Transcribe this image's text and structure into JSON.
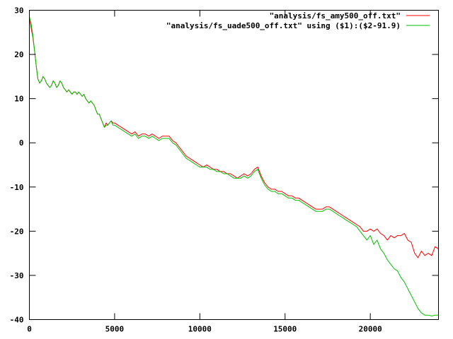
{
  "chart_data": {
    "type": "line",
    "title": "",
    "xlabel": "",
    "ylabel": "",
    "xlim": [
      0,
      24000
    ],
    "ylim": [
      -40,
      30
    ],
    "x_ticks": [
      0,
      5000,
      10000,
      15000,
      20000
    ],
    "x_tick_labels": [
      "0",
      "5000",
      "10000",
      "15000",
      "20000"
    ],
    "y_ticks": [
      30,
      20,
      10,
      0,
      -10,
      -20,
      -30,
      -40
    ],
    "y_tick_labels": [
      "30",
      "20",
      "10",
      "0",
      "-10",
      "-20",
      "-30",
      "-40"
    ],
    "grid": false,
    "legend_position": "top-right",
    "series": [
      {
        "name": "\"analysis/fs_amy500_off.txt\"",
        "color": "#ff0000",
        "points": [
          [
            0,
            28.5
          ],
          [
            100,
            26
          ],
          [
            200,
            24
          ],
          [
            300,
            21
          ],
          [
            400,
            17.5
          ],
          [
            500,
            14.5
          ],
          [
            600,
            13.5
          ],
          [
            700,
            14
          ],
          [
            800,
            15
          ],
          [
            900,
            14.5
          ],
          [
            1000,
            13.5
          ],
          [
            1100,
            13
          ],
          [
            1200,
            12.5
          ],
          [
            1300,
            13
          ],
          [
            1400,
            14
          ],
          [
            1500,
            13.5
          ],
          [
            1600,
            12.5
          ],
          [
            1700,
            13
          ],
          [
            1800,
            14
          ],
          [
            1900,
            13.5
          ],
          [
            2000,
            12.5
          ],
          [
            2100,
            12
          ],
          [
            2200,
            11.5
          ],
          [
            2300,
            12
          ],
          [
            2400,
            11.5
          ],
          [
            2500,
            11
          ],
          [
            2600,
            11.5
          ],
          [
            2700,
            11.5
          ],
          [
            2800,
            11
          ],
          [
            2900,
            11.5
          ],
          [
            3000,
            11
          ],
          [
            3100,
            10.5
          ],
          [
            3200,
            11
          ],
          [
            3300,
            10
          ],
          [
            3400,
            9.5
          ],
          [
            3500,
            9
          ],
          [
            3600,
            9.5
          ],
          [
            3700,
            9
          ],
          [
            3800,
            8.5
          ],
          [
            3900,
            7.5
          ],
          [
            4000,
            6.5
          ],
          [
            4100,
            6.5
          ],
          [
            4200,
            5.5
          ],
          [
            4300,
            4.5
          ],
          [
            4400,
            3.5
          ],
          [
            4500,
            4.5
          ],
          [
            4600,
            4
          ],
          [
            4700,
            4.5
          ],
          [
            4800,
            5
          ],
          [
            4900,
            4.5
          ],
          [
            5000,
            4.5
          ],
          [
            5200,
            4
          ],
          [
            5400,
            3.5
          ],
          [
            5600,
            3
          ],
          [
            5800,
            2.5
          ],
          [
            6000,
            2
          ],
          [
            6200,
            2.5
          ],
          [
            6400,
            1.5
          ],
          [
            6600,
            2
          ],
          [
            6800,
            2
          ],
          [
            7000,
            1.5
          ],
          [
            7200,
            2
          ],
          [
            7400,
            1.5
          ],
          [
            7600,
            1
          ],
          [
            7800,
            1.5
          ],
          [
            8000,
            1.5
          ],
          [
            8200,
            1.5
          ],
          [
            8400,
            0.5
          ],
          [
            8600,
            0
          ],
          [
            8800,
            -1
          ],
          [
            9000,
            -2
          ],
          [
            9200,
            -3
          ],
          [
            9400,
            -3.5
          ],
          [
            9600,
            -4
          ],
          [
            9800,
            -4.5
          ],
          [
            10000,
            -5
          ],
          [
            10200,
            -5.5
          ],
          [
            10400,
            -5
          ],
          [
            10600,
            -5.5
          ],
          [
            10800,
            -6
          ],
          [
            11000,
            -6
          ],
          [
            11200,
            -6.5
          ],
          [
            11400,
            -6.5
          ],
          [
            11600,
            -7
          ],
          [
            11800,
            -7
          ],
          [
            12000,
            -7.5
          ],
          [
            12200,
            -8
          ],
          [
            12400,
            -7.5
          ],
          [
            12600,
            -7
          ],
          [
            12800,
            -7.5
          ],
          [
            13000,
            -7
          ],
          [
            13200,
            -6
          ],
          [
            13400,
            -5.5
          ],
          [
            13600,
            -7.5
          ],
          [
            13800,
            -9
          ],
          [
            14000,
            -10
          ],
          [
            14200,
            -10.5
          ],
          [
            14400,
            -10.5
          ],
          [
            14600,
            -11
          ],
          [
            14800,
            -11
          ],
          [
            15000,
            -11.5
          ],
          [
            15200,
            -12
          ],
          [
            15400,
            -12
          ],
          [
            15600,
            -12.5
          ],
          [
            15800,
            -12.5
          ],
          [
            16000,
            -13
          ],
          [
            16200,
            -13.5
          ],
          [
            16400,
            -14
          ],
          [
            16600,
            -14.5
          ],
          [
            16800,
            -15
          ],
          [
            17000,
            -15
          ],
          [
            17200,
            -15
          ],
          [
            17400,
            -14.5
          ],
          [
            17600,
            -14.5
          ],
          [
            17800,
            -15
          ],
          [
            18000,
            -15.5
          ],
          [
            18200,
            -16
          ],
          [
            18400,
            -16.5
          ],
          [
            18600,
            -17
          ],
          [
            18800,
            -17.5
          ],
          [
            19000,
            -18
          ],
          [
            19200,
            -18.5
          ],
          [
            19400,
            -19
          ],
          [
            19600,
            -20
          ],
          [
            19800,
            -20
          ],
          [
            20000,
            -19.5
          ],
          [
            20200,
            -20
          ],
          [
            20400,
            -19.5
          ],
          [
            20600,
            -20.5
          ],
          [
            20800,
            -21
          ],
          [
            21000,
            -22
          ],
          [
            21200,
            -21
          ],
          [
            21400,
            -21.5
          ],
          [
            21600,
            -21
          ],
          [
            21800,
            -21
          ],
          [
            22000,
            -20.5
          ],
          [
            22200,
            -22
          ],
          [
            22400,
            -22.5
          ],
          [
            22600,
            -25
          ],
          [
            22800,
            -26
          ],
          [
            23000,
            -24.5
          ],
          [
            23200,
            -25.5
          ],
          [
            23400,
            -25
          ],
          [
            23600,
            -25.5
          ],
          [
            23800,
            -23.5
          ],
          [
            24000,
            -24
          ]
        ]
      },
      {
        "name": "\"analysis/fs_uade500_off.txt\" using ($1):($2-91.9)",
        "color": "#00c000",
        "points": [
          [
            0,
            28.5
          ],
          [
            100,
            27
          ],
          [
            200,
            24.5
          ],
          [
            300,
            21
          ],
          [
            400,
            17.5
          ],
          [
            500,
            14.5
          ],
          [
            600,
            13.5
          ],
          [
            700,
            14
          ],
          [
            800,
            15
          ],
          [
            900,
            14.5
          ],
          [
            1000,
            13.5
          ],
          [
            1100,
            13
          ],
          [
            1200,
            12.5
          ],
          [
            1300,
            13
          ],
          [
            1400,
            14
          ],
          [
            1500,
            13.5
          ],
          [
            1600,
            12.5
          ],
          [
            1700,
            13
          ],
          [
            1800,
            14
          ],
          [
            1900,
            13.5
          ],
          [
            2000,
            12.5
          ],
          [
            2100,
            12
          ],
          [
            2200,
            11.5
          ],
          [
            2300,
            12
          ],
          [
            2400,
            11.5
          ],
          [
            2500,
            11
          ],
          [
            2600,
            11.5
          ],
          [
            2700,
            11.5
          ],
          [
            2800,
            11
          ],
          [
            2900,
            11.5
          ],
          [
            3000,
            11
          ],
          [
            3100,
            10.5
          ],
          [
            3200,
            11
          ],
          [
            3300,
            10
          ],
          [
            3400,
            9.5
          ],
          [
            3500,
            9
          ],
          [
            3600,
            9.5
          ],
          [
            3700,
            9
          ],
          [
            3800,
            8.5
          ],
          [
            3900,
            7.5
          ],
          [
            4000,
            6.5
          ],
          [
            4100,
            6.5
          ],
          [
            4200,
            5.5
          ],
          [
            4300,
            4.5
          ],
          [
            4400,
            3.5
          ],
          [
            4500,
            4
          ],
          [
            4600,
            4
          ],
          [
            4700,
            4.5
          ],
          [
            4800,
            5
          ],
          [
            4900,
            4
          ],
          [
            5000,
            4
          ],
          [
            5200,
            3.5
          ],
          [
            5400,
            3
          ],
          [
            5600,
            2.5
          ],
          [
            5800,
            2
          ],
          [
            6000,
            1.5
          ],
          [
            6200,
            2
          ],
          [
            6400,
            1
          ],
          [
            6600,
            1.5
          ],
          [
            6800,
            1.5
          ],
          [
            7000,
            1
          ],
          [
            7200,
            1.5
          ],
          [
            7400,
            1
          ],
          [
            7600,
            0.5
          ],
          [
            7800,
            1
          ],
          [
            8000,
            1
          ],
          [
            8200,
            1
          ],
          [
            8400,
            0
          ],
          [
            8600,
            -0.5
          ],
          [
            8800,
            -1.5
          ],
          [
            9000,
            -2.5
          ],
          [
            9200,
            -3.5
          ],
          [
            9400,
            -4
          ],
          [
            9600,
            -4.5
          ],
          [
            9800,
            -5
          ],
          [
            10000,
            -5.5
          ],
          [
            10200,
            -5.5
          ],
          [
            10400,
            -5.5
          ],
          [
            10600,
            -6
          ],
          [
            10800,
            -6
          ],
          [
            11000,
            -6.5
          ],
          [
            11200,
            -6.5
          ],
          [
            11400,
            -7
          ],
          [
            11600,
            -7
          ],
          [
            11800,
            -7.5
          ],
          [
            12000,
            -8
          ],
          [
            12200,
            -8
          ],
          [
            12400,
            -8
          ],
          [
            12600,
            -7.5
          ],
          [
            12800,
            -8
          ],
          [
            13000,
            -7.5
          ],
          [
            13200,
            -6.5
          ],
          [
            13400,
            -6
          ],
          [
            13600,
            -8
          ],
          [
            13800,
            -9.5
          ],
          [
            14000,
            -10.5
          ],
          [
            14200,
            -11
          ],
          [
            14400,
            -11
          ],
          [
            14600,
            -11.5
          ],
          [
            14800,
            -11.5
          ],
          [
            15000,
            -12
          ],
          [
            15200,
            -12.5
          ],
          [
            15400,
            -12.5
          ],
          [
            15600,
            -13
          ],
          [
            15800,
            -13
          ],
          [
            16000,
            -13.5
          ],
          [
            16200,
            -14
          ],
          [
            16400,
            -14.5
          ],
          [
            16600,
            -15
          ],
          [
            16800,
            -15.5
          ],
          [
            17000,
            -15.5
          ],
          [
            17200,
            -15.5
          ],
          [
            17400,
            -15
          ],
          [
            17600,
            -15
          ],
          [
            17800,
            -15.5
          ],
          [
            18000,
            -16
          ],
          [
            18200,
            -16.5
          ],
          [
            18400,
            -17
          ],
          [
            18600,
            -17.5
          ],
          [
            18800,
            -18
          ],
          [
            19000,
            -18.5
          ],
          [
            19200,
            -19
          ],
          [
            19400,
            -20
          ],
          [
            19600,
            -21
          ],
          [
            19800,
            -22
          ],
          [
            20000,
            -21
          ],
          [
            20200,
            -23
          ],
          [
            20400,
            -22
          ],
          [
            20600,
            -24
          ],
          [
            20800,
            -25
          ],
          [
            21000,
            -26.5
          ],
          [
            21200,
            -27.5
          ],
          [
            21400,
            -28.5
          ],
          [
            21600,
            -29
          ],
          [
            21800,
            -30.5
          ],
          [
            22000,
            -31.5
          ],
          [
            22200,
            -33
          ],
          [
            22400,
            -34.5
          ],
          [
            22600,
            -36
          ],
          [
            22800,
            -37.5
          ],
          [
            23000,
            -38.5
          ],
          [
            23200,
            -39
          ],
          [
            23400,
            -39
          ],
          [
            23600,
            -39.2
          ],
          [
            23800,
            -39
          ],
          [
            24000,
            -39
          ]
        ]
      }
    ]
  }
}
